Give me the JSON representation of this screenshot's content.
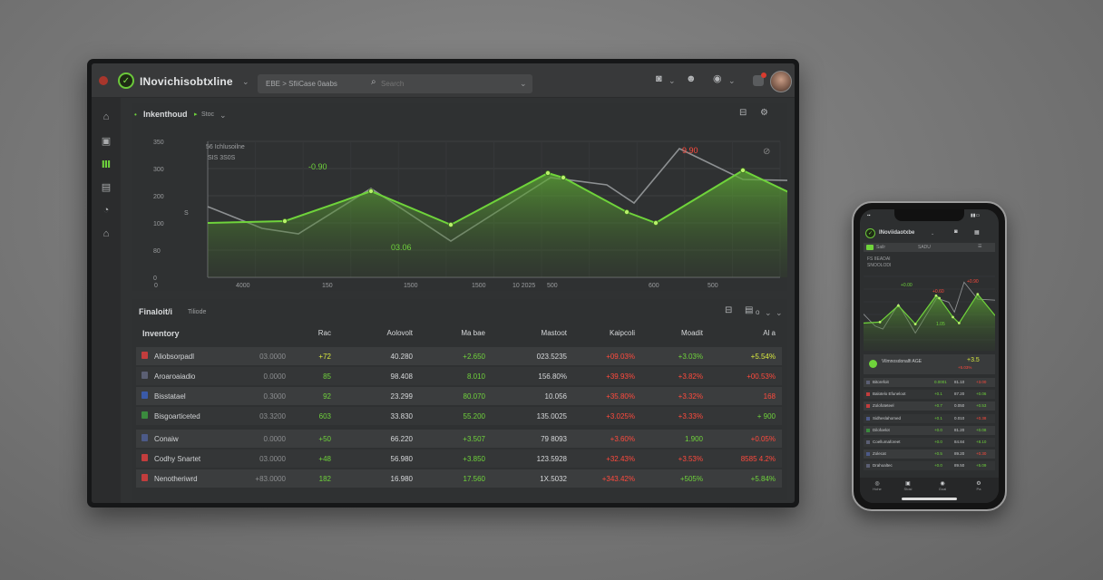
{
  "app": {
    "title": "INovichisobtxline",
    "breadcrumb": "EBE > SfiiCase 0aabs",
    "search_placeholder": "Search"
  },
  "colors": {
    "accent_green": "#6fd33b",
    "negative_red": "#ff4a3d",
    "panel_bg": "#303233"
  },
  "header_icons": [
    "camera-icon",
    "users-icon",
    "globe-icon",
    "notification-icon",
    "avatar"
  ],
  "sidebar": {
    "items": [
      {
        "name": "home-icon",
        "glyph": "⌂"
      },
      {
        "name": "wallet-icon",
        "glyph": "▣"
      },
      {
        "name": "stats-icon",
        "glyph": "Ⅲ",
        "active": true
      },
      {
        "name": "calendar-icon",
        "glyph": "▤"
      },
      {
        "name": "chat-icon",
        "glyph": "◔"
      },
      {
        "name": "lock-icon",
        "glyph": "⌂"
      }
    ]
  },
  "chart_panel": {
    "title": "Inkenthoud",
    "subtitle": "Stoc",
    "legend_line1": "56 Ichlusoilne",
    "legend_line2": "SIS 3S0S",
    "peak_labels": [
      "-0.90",
      "9.90"
    ],
    "trough_label": "03.06",
    "side_label": "S"
  },
  "chart_data": {
    "type": "line",
    "title": "",
    "y_ticks": [
      "350",
      "300",
      "200",
      "100",
      "80",
      "0"
    ],
    "x_ticks": [
      "0",
      "4000",
      "150",
      "1500",
      "1500",
      "10 2025",
      "500",
      "600",
      "500"
    ],
    "series": [
      {
        "name": "",
        "color": "#6fd33b",
        "points": [
          [
            0,
            90
          ],
          [
            85,
            88
          ],
          [
            180,
            55
          ],
          [
            268,
            92
          ],
          [
            375,
            35
          ],
          [
            392,
            40
          ],
          [
            462,
            78
          ],
          [
            494,
            90
          ],
          [
            590,
            32
          ],
          [
            680,
            75
          ]
        ]
      },
      {
        "name": "",
        "color": "#8d9092",
        "points": [
          [
            0,
            72
          ],
          [
            60,
            96
          ],
          [
            100,
            102
          ],
          [
            180,
            52
          ],
          [
            268,
            110
          ],
          [
            378,
            40
          ],
          [
            440,
            48
          ],
          [
            470,
            68
          ],
          [
            520,
            8
          ],
          [
            590,
            42
          ],
          [
            680,
            44
          ]
        ]
      }
    ]
  },
  "table_panel": {
    "title": "Finaloit/i",
    "subtitle": "Tiliode",
    "columns": [
      "Inventory",
      "Rac",
      "Aolovolt",
      "Ma bae",
      "Mastoot",
      "Kaipcoli",
      "Moadit",
      "Al a"
    ],
    "rows": [
      {
        "name": "Aliobsorpadl",
        "sub": "03.0000",
        "c1": "+72",
        "c2": "40.280",
        "c3": "+2.650",
        "c4": "023.5235",
        "c5": "+09.03%",
        "c6": "+3.03%",
        "c7": "+5.54%",
        "marker": "#c23d3d",
        "colors": [
          "y",
          "",
          "g",
          "",
          "r",
          "g",
          "y"
        ]
      },
      {
        "name": "Aroaroaiadio",
        "sub": "0.0000",
        "c1": "85",
        "c2": "98.408",
        "c3": "8.010",
        "c4": "156.80%",
        "c5": "+39.93%",
        "c6": "+3.82%",
        "c7": "+00.53%",
        "marker": "#5b5f73",
        "colors": [
          "g",
          "",
          "g",
          "",
          "r",
          "r",
          "r"
        ]
      },
      {
        "name": "Bisstatael",
        "sub": "0.3000",
        "c1": "92",
        "c2": "23.299",
        "c3": "80.070",
        "c4": "10.056",
        "c5": "+35.80%",
        "c6": "+3.32%",
        "c7": "168",
        "marker": "#3a5aa8",
        "colors": [
          "g",
          "",
          "g",
          "",
          "r",
          "r",
          "r"
        ]
      },
      {
        "name": "Bisgoarticeted",
        "sub": "03.3200",
        "c1": "603",
        "c2": "33.830",
        "c3": "55.200",
        "c4": "135.0025",
        "c5": "+3.025%",
        "c6": "+3.33%",
        "c7": "+ 900",
        "marker": "#3b8a3e",
        "colors": [
          "g",
          "",
          "g",
          "",
          "r",
          "r",
          "g"
        ]
      },
      {
        "name": "Conaiw",
        "sub": "0.0000",
        "c1": "+50",
        "c2": "66.220",
        "c3": "+3.507",
        "c4": "79 8093",
        "c5": "+3.60%",
        "c6": "1.900",
        "c7": "+0.05%",
        "marker": "#4c5a88",
        "colors": [
          "g",
          "",
          "g",
          "",
          "r",
          "g",
          "r"
        ]
      },
      {
        "name": "Codhy Snartet",
        "sub": "03.0000",
        "c1": "+48",
        "c2": "56.980",
        "c3": "+3.850",
        "c4": "123.5928",
        "c5": "+32.43%",
        "c6": "+3.53%",
        "c7": "8585 4.2%",
        "marker": "#c23d3d",
        "colors": [
          "g",
          "",
          "g",
          "",
          "r",
          "r",
          "r"
        ]
      },
      {
        "name": "Nenotheriwrd",
        "sub": "+83.0000",
        "c1": "182",
        "c2": "16.980",
        "c3": "17.560",
        "c4": "1X.5032",
        "c5": "+343.42%",
        "c6": "+505%",
        "c7": "+5.84%",
        "marker": "#c23d3d",
        "colors": [
          "g",
          "",
          "g",
          "",
          "r",
          "g",
          "g"
        ]
      }
    ]
  },
  "phone": {
    "brand": "INoviidaotxbe",
    "tabs": [
      "Sailr",
      "SADU"
    ],
    "chart_caption_1": "FS IIEADAI",
    "chart_caption_2": "SNOOLODI",
    "peak_labels": [
      "+0.00",
      "+0.60",
      "+0.90"
    ],
    "trough_label": "1.05",
    "summary_label": "Vilmnosdonalfi AGE",
    "summary_value": "+3.5",
    "summary_sub": "+5.03%",
    "rows": [
      {
        "name": "Bitorefoit",
        "a": "0.0001",
        "b": "81.10",
        "c": "+3.00"
      },
      {
        "name": "Balotelo Efuneloot",
        "a": "+0.1",
        "b": "87.20",
        "c": "+0.06"
      },
      {
        "name": "Zolofoteteel",
        "a": "+0.7",
        "b": "0.050",
        "c": "+0.53"
      },
      {
        "name": "Sidheslahomed",
        "a": "+0.1",
        "b": "0.010",
        "c": "+0.38"
      },
      {
        "name": "Dilofoelot",
        "a": "+0.0",
        "b": "81.20",
        "c": "+0.08"
      },
      {
        "name": "Coellumaforeet",
        "a": "+0.0",
        "b": "84.84",
        "c": "+8.10"
      },
      {
        "name": "Zolecat",
        "a": "+0.5",
        "b": "89.20",
        "c": "+0.30"
      },
      {
        "name": "Drahoaltec",
        "a": "+0.0",
        "b": "89.50",
        "c": "+5.09"
      }
    ],
    "bottom_nav": [
      "Hohe",
      "Stosl",
      "Goal",
      "Pa"
    ]
  }
}
